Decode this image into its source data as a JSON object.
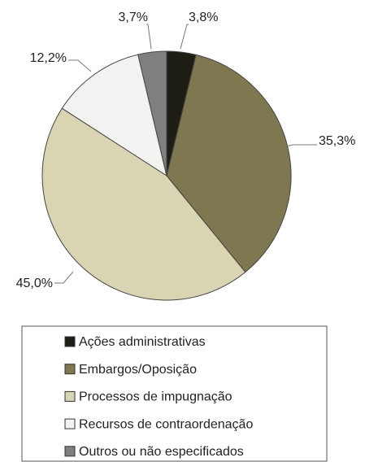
{
  "chart_data": {
    "type": "pie",
    "categories": [
      "Ações administrativas",
      "Embargos/Oposição",
      "Processos de impugnação",
      "Recursos de contraordenação",
      "Outros ou não especificados"
    ],
    "values": [
      3.8,
      35.3,
      45.0,
      12.2,
      3.7
    ],
    "value_labels": [
      "3,8%",
      "35,3%",
      "45,0%",
      "12,2%",
      "3,7%"
    ],
    "colors": [
      "#1f1e14",
      "#7e7750",
      "#d9d4b2",
      "#f2f2f0",
      "#7f7f7f"
    ]
  }
}
